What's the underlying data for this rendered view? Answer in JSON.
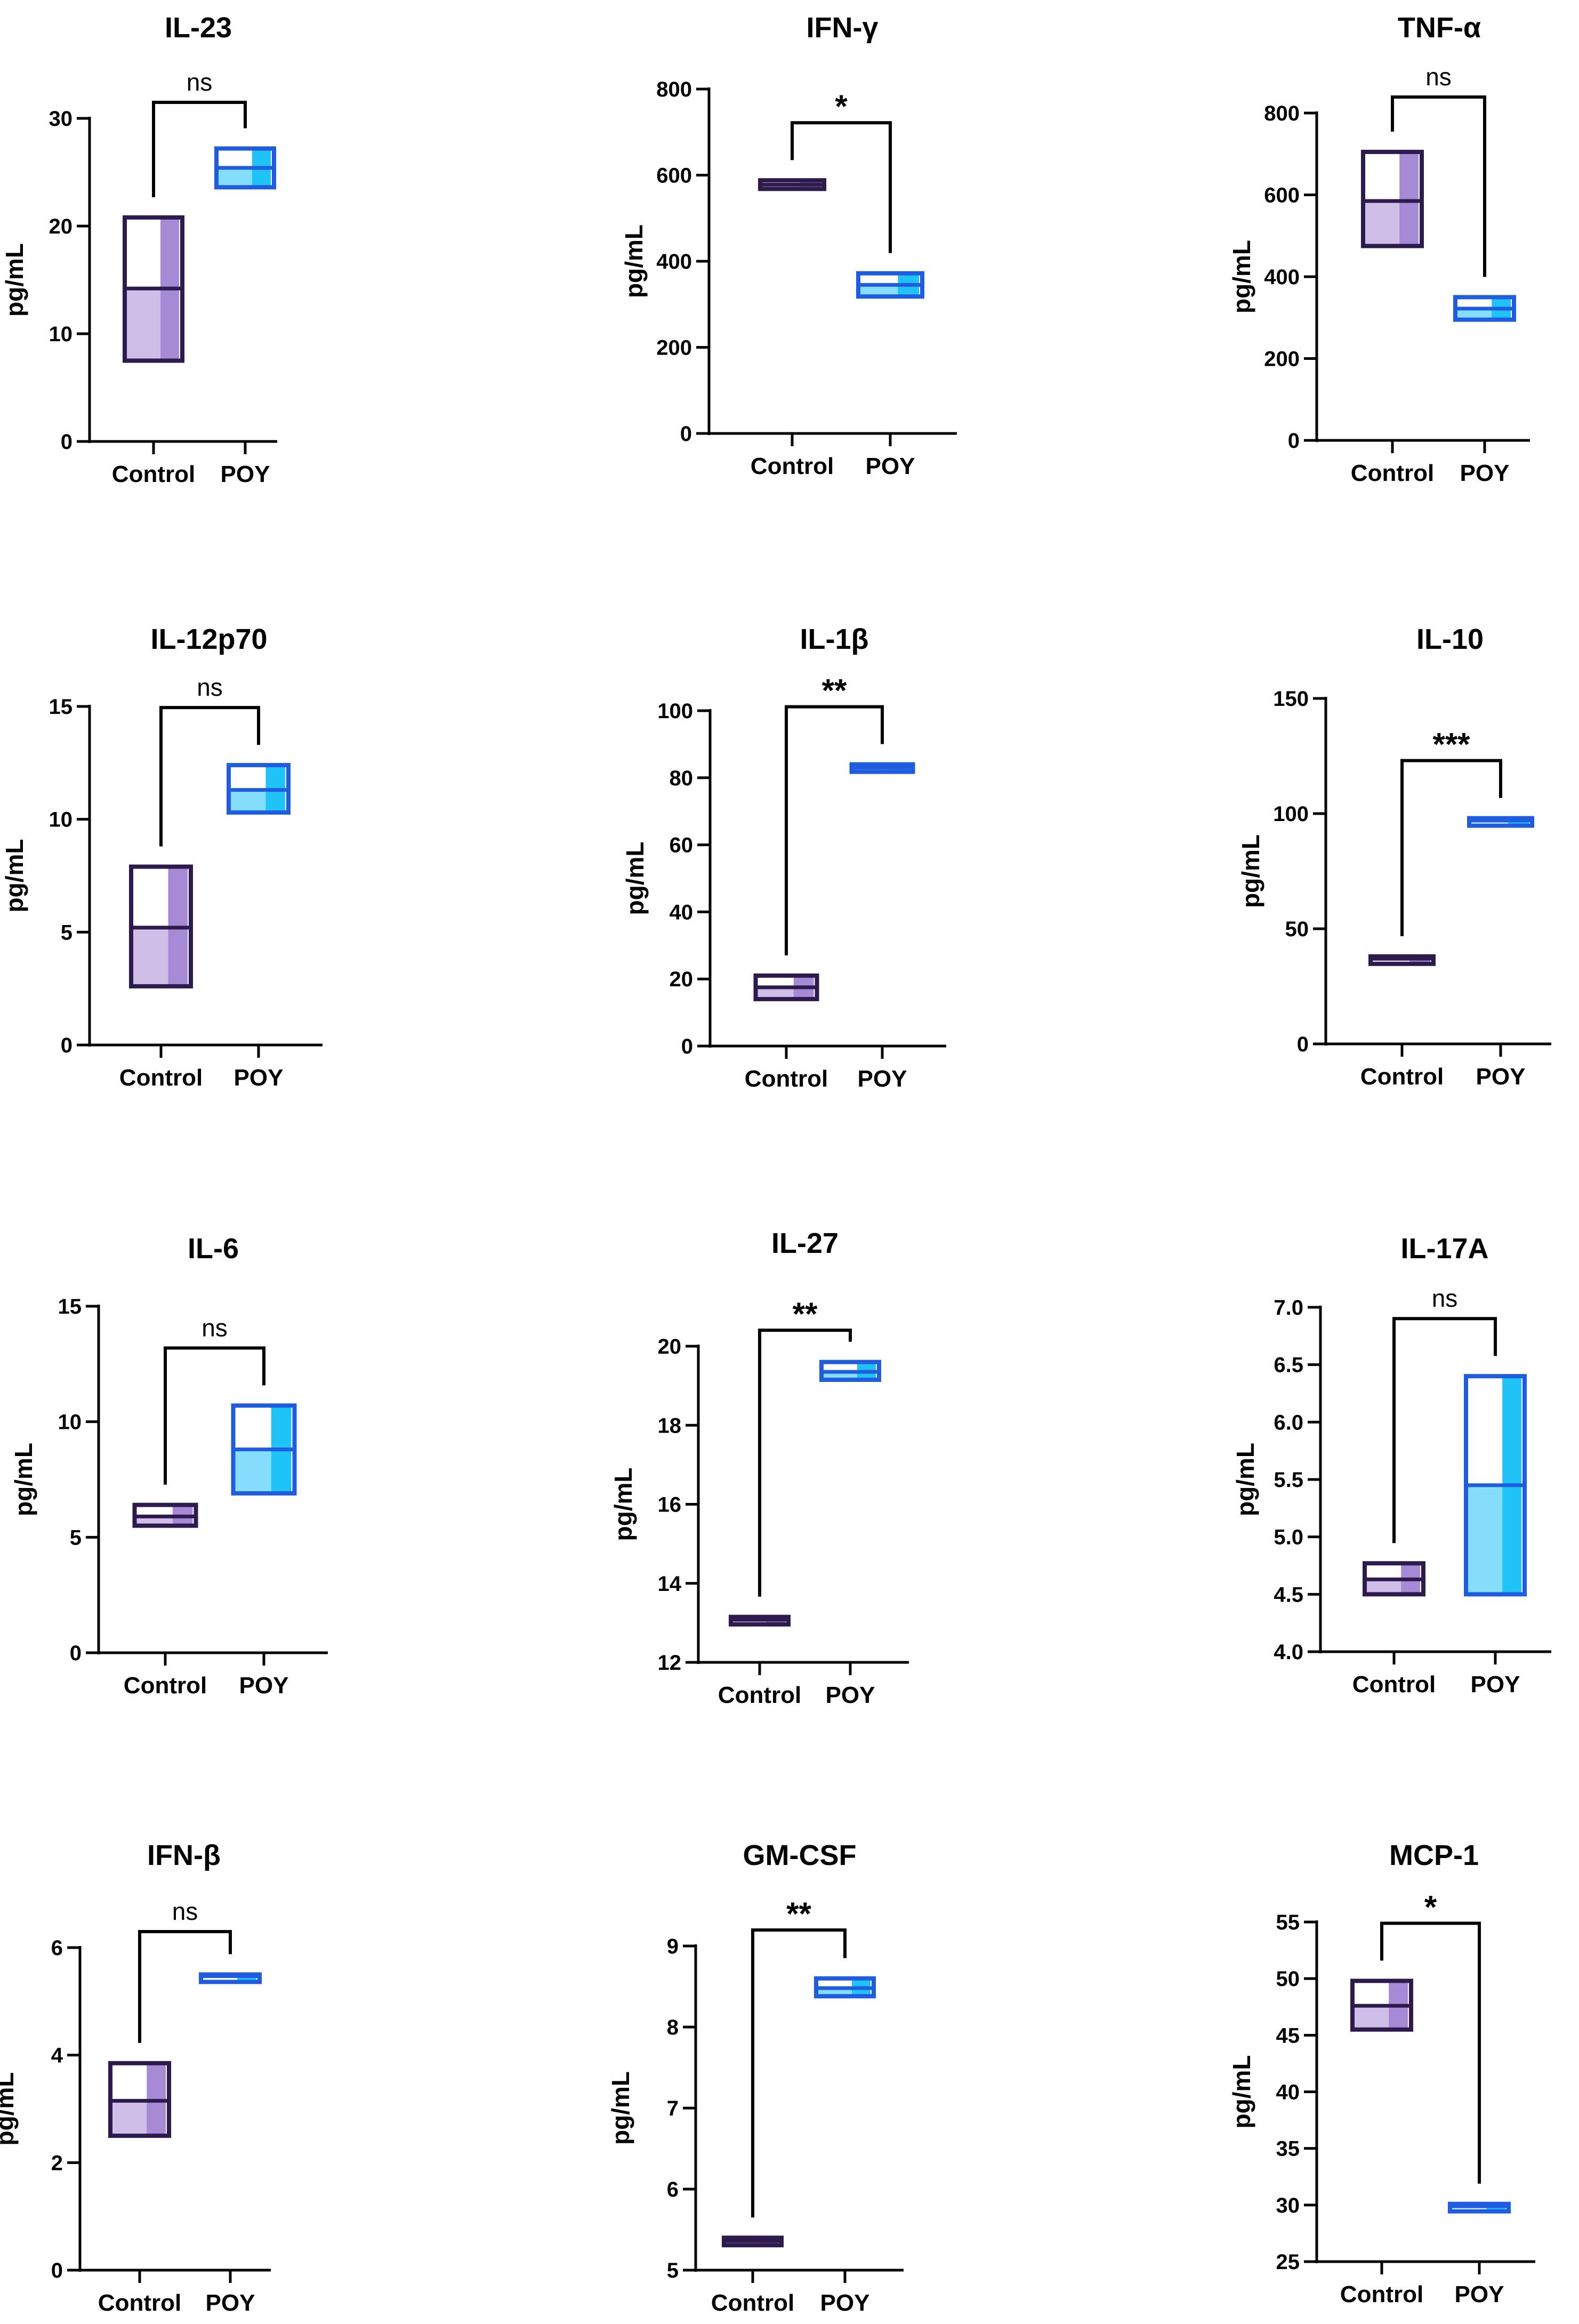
{
  "colors": {
    "control_dark": "#2d1b4e",
    "control_fill": "#a78ad6",
    "poy_dark": "#1f5ce0",
    "poy_fill": "#1fc3f7",
    "axis": "#000000"
  },
  "chart_data": [
    {
      "type": "box",
      "title": "IL-23",
      "ylabel": "pg/mL",
      "ylim": [
        0,
        30
      ],
      "yticks": [
        "0",
        "10",
        "20",
        "30"
      ],
      "categories": [
        "Control",
        "POY"
      ],
      "series": [
        {
          "name": "Control",
          "min": 7.5,
          "median": 14.2,
          "max": 20.8
        },
        {
          "name": "POY",
          "min": 23.6,
          "median": 25.4,
          "max": 27.2
        }
      ],
      "significance": "ns",
      "ytick_values": [
        0,
        10,
        20,
        30
      ]
    },
    {
      "type": "box",
      "title": "IFN-γ",
      "ylabel": "pg/mL",
      "ylim": [
        0,
        800
      ],
      "yticks": [
        "0",
        "200",
        "400",
        "600",
        "800"
      ],
      "categories": [
        "Control",
        "POY"
      ],
      "series": [
        {
          "name": "Control",
          "min": 568,
          "median": 578,
          "max": 588
        },
        {
          "name": "POY",
          "min": 318,
          "median": 345,
          "max": 372
        }
      ],
      "significance": "*",
      "ytick_values": [
        0,
        200,
        400,
        600,
        800
      ]
    },
    {
      "type": "box",
      "title": "TNF-α",
      "ylabel": "pg/mL",
      "ylim": [
        0,
        800
      ],
      "yticks": [
        "0",
        "200",
        "400",
        "600",
        "800"
      ],
      "categories": [
        "Control",
        "POY"
      ],
      "series": [
        {
          "name": "Control",
          "min": 475,
          "median": 585,
          "max": 705
        },
        {
          "name": "POY",
          "min": 295,
          "median": 322,
          "max": 350
        }
      ],
      "significance": "ns",
      "ytick_values": [
        0,
        200,
        400,
        600,
        800
      ]
    },
    {
      "type": "box",
      "title": "IL-12p70",
      "ylabel": "pg/mL",
      "ylim": [
        0,
        15
      ],
      "yticks": [
        "0",
        "5",
        "10",
        "15"
      ],
      "categories": [
        "Control",
        "POY"
      ],
      "series": [
        {
          "name": "Control",
          "min": 2.6,
          "median": 5.2,
          "max": 7.9
        },
        {
          "name": "POY",
          "min": 10.3,
          "median": 11.3,
          "max": 12.4
        }
      ],
      "significance": "ns",
      "ytick_values": [
        0,
        5,
        10,
        15
      ]
    },
    {
      "type": "box",
      "title": "IL-1β",
      "ylabel": "pg/mL",
      "ylim": [
        0,
        100
      ],
      "yticks": [
        "0",
        "20",
        "40",
        "60",
        "80",
        "100"
      ],
      "categories": [
        "Control",
        "POY"
      ],
      "series": [
        {
          "name": "Control",
          "min": 14,
          "median": 17.5,
          "max": 21
        },
        {
          "name": "POY",
          "min": 82,
          "median": 83,
          "max": 84
        }
      ],
      "significance": "**",
      "ytick_values": [
        0,
        20,
        40,
        60,
        80,
        100
      ]
    },
    {
      "type": "box",
      "title": "IL-10",
      "ylabel": "pg/mL",
      "ylim": [
        0,
        150
      ],
      "yticks": [
        "0",
        "50",
        "100",
        "150"
      ],
      "categories": [
        "Control",
        "POY"
      ],
      "series": [
        {
          "name": "Control",
          "min": 36,
          "median": 37,
          "max": 38
        },
        {
          "name": "POY",
          "min": 96,
          "median": 97,
          "max": 98
        }
      ],
      "significance": "***",
      "ytick_values": [
        0,
        50,
        100,
        150
      ]
    },
    {
      "type": "box",
      "title": "IL-6",
      "ylabel": "pg/mL",
      "ylim": [
        0,
        15
      ],
      "yticks": [
        "0",
        "5",
        "10",
        "15"
      ],
      "categories": [
        "Control",
        "POY"
      ],
      "series": [
        {
          "name": "Control",
          "min": 5.5,
          "median": 5.9,
          "max": 6.4
        },
        {
          "name": "POY",
          "min": 6.9,
          "median": 8.8,
          "max": 10.7
        }
      ],
      "significance": "ns",
      "ytick_values": [
        0,
        5,
        10,
        15
      ]
    },
    {
      "type": "box",
      "title": "IL-27",
      "ylabel": "pg/mL",
      "ylim": [
        12,
        20
      ],
      "yticks": [
        "12",
        "14",
        "16",
        "18",
        "20"
      ],
      "categories": [
        "Control",
        "POY"
      ],
      "series": [
        {
          "name": "Control",
          "min": 13.0,
          "median": 13.08,
          "max": 13.15
        },
        {
          "name": "POY",
          "min": 19.15,
          "median": 19.35,
          "max": 19.6
        }
      ],
      "significance": "**",
      "ytick_values": [
        12,
        14,
        16,
        18,
        20
      ]
    },
    {
      "type": "box",
      "title": "IL-17A",
      "ylabel": "pg/mL",
      "ylim": [
        4.0,
        7.0
      ],
      "yticks": [
        "4.0",
        "4.5",
        "5.0",
        "5.5",
        "6.0",
        "6.5",
        "7.0"
      ],
      "categories": [
        "Control",
        "POY"
      ],
      "series": [
        {
          "name": "Control",
          "min": 4.5,
          "median": 4.63,
          "max": 4.77
        },
        {
          "name": "POY",
          "min": 4.5,
          "median": 5.45,
          "max": 6.4
        }
      ],
      "significance": "ns",
      "ytick_values": [
        4.0,
        4.5,
        5.0,
        5.5,
        6.0,
        6.5,
        7.0
      ]
    },
    {
      "type": "box",
      "title": "IFN-β",
      "ylabel": "pg/mL",
      "ylim": [
        0,
        6
      ],
      "yticks": [
        "0",
        "2",
        "4",
        "6"
      ],
      "categories": [
        "Control",
        "POY"
      ],
      "series": [
        {
          "name": "Control",
          "min": 2.5,
          "median": 3.15,
          "max": 3.85
        },
        {
          "name": "POY",
          "min": 5.44,
          "median": 5.47,
          "max": 5.5
        }
      ],
      "significance": "ns",
      "ytick_values": [
        0,
        2,
        4,
        6
      ]
    },
    {
      "type": "box",
      "title": "GM-CSF",
      "ylabel": "pg/mL",
      "ylim": [
        5,
        9
      ],
      "yticks": [
        "5",
        "6",
        "7",
        "8",
        "9"
      ],
      "categories": [
        "Control",
        "POY"
      ],
      "series": [
        {
          "name": "Control",
          "min": 5.32,
          "median": 5.36,
          "max": 5.4
        },
        {
          "name": "POY",
          "min": 8.38,
          "median": 8.48,
          "max": 8.6
        }
      ],
      "significance": "**",
      "ytick_values": [
        5,
        6,
        7,
        8,
        9
      ]
    },
    {
      "type": "box",
      "title": "MCP-1",
      "ylabel": "pg/mL",
      "ylim": [
        25,
        55
      ],
      "yticks": [
        "25",
        "30",
        "35",
        "40",
        "45",
        "50",
        "55"
      ],
      "categories": [
        "Control",
        "POY"
      ],
      "series": [
        {
          "name": "Control",
          "min": 45.5,
          "median": 47.6,
          "max": 49.8
        },
        {
          "name": "POY",
          "min": 29.7,
          "median": 29.9,
          "max": 30.1
        }
      ],
      "significance": "*",
      "ytick_values": [
        25,
        30,
        35,
        40,
        45,
        50,
        55
      ]
    }
  ]
}
